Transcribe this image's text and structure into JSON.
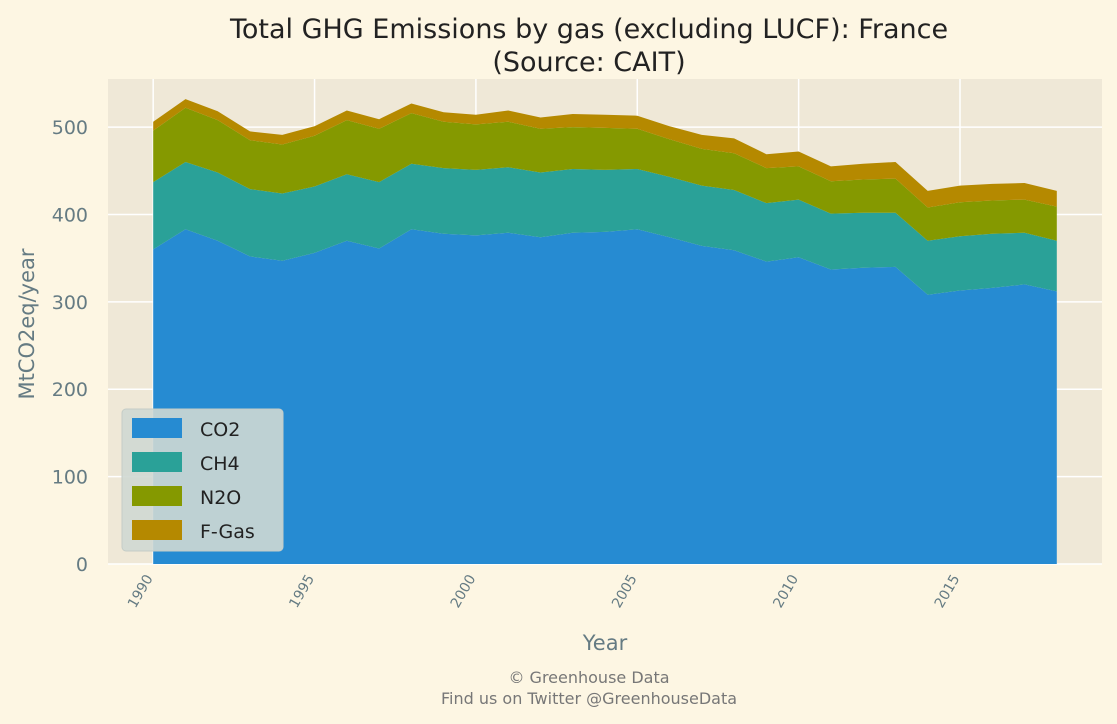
{
  "chart_data": {
    "type": "area",
    "stacked": true,
    "title": "Total GHG Emissions by gas (excluding LUCF): France",
    "subtitle": "(Source: CAIT)",
    "xlabel": "Year",
    "ylabel": "MtCO2eq/year",
    "xlim": [
      1988.6,
      2019.4
    ],
    "ylim": [
      0,
      555
    ],
    "xticks": [
      1990,
      1995,
      2000,
      2005,
      2010,
      2015
    ],
    "yticks": [
      0,
      100,
      200,
      300,
      400,
      500
    ],
    "grid": true,
    "legend_position": "lower-left",
    "x": [
      1990,
      1991,
      1992,
      1993,
      1994,
      1995,
      1996,
      1997,
      1998,
      1999,
      2000,
      2001,
      2002,
      2003,
      2004,
      2005,
      2006,
      2007,
      2008,
      2009,
      2010,
      2011,
      2012,
      2013,
      2014,
      2015,
      2016,
      2017,
      2018
    ],
    "series": [
      {
        "name": "CO2",
        "color": "#268bd2",
        "values": [
          360,
          383,
          370,
          352,
          347,
          356,
          370,
          361,
          383,
          378,
          376,
          379,
          374,
          379,
          380,
          383,
          374,
          364,
          359,
          346,
          351,
          337,
          339,
          340,
          308,
          313,
          316,
          320,
          312
        ]
      },
      {
        "name": "CH4",
        "color": "#2aa198",
        "values": [
          77,
          77,
          78,
          77,
          77,
          76,
          76,
          76,
          75,
          75,
          75,
          75,
          74,
          73,
          71,
          69,
          69,
          69,
          69,
          67,
          66,
          64,
          63,
          62,
          62,
          62,
          62,
          59,
          58
        ]
      },
      {
        "name": "N2O",
        "color": "#859900",
        "values": [
          59,
          62,
          60,
          56,
          56,
          58,
          62,
          61,
          58,
          53,
          52,
          52,
          50,
          48,
          48,
          46,
          43,
          42,
          42,
          40,
          38,
          37,
          38,
          39,
          38,
          39,
          38,
          38,
          39
        ]
      },
      {
        "name": "F-Gas",
        "color": "#b58900",
        "values": [
          10,
          10,
          10,
          10,
          11,
          11,
          11,
          11,
          11,
          11,
          11,
          13,
          13,
          15,
          15,
          15,
          15,
          16,
          17,
          16,
          17,
          17,
          18,
          19,
          19,
          19,
          19,
          19,
          18
        ]
      }
    ]
  },
  "footer": {
    "line1": "© Greenhouse Data",
    "line2": "Find us on Twitter @GreenhouseData"
  }
}
